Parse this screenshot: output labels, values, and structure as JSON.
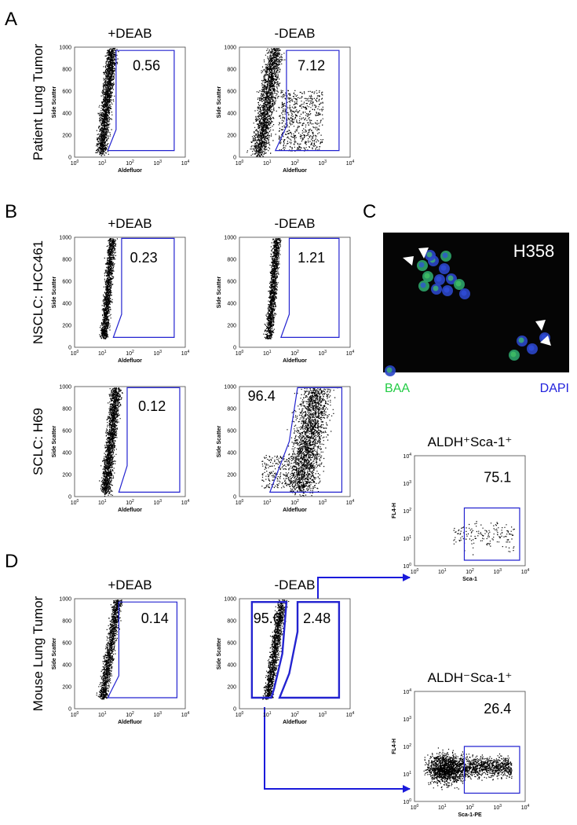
{
  "panels": {
    "A": {
      "letter": "A",
      "row_label": "Patient Lung Tumor",
      "plots": [
        {
          "title": "+DEAB",
          "gate": "0.56"
        },
        {
          "title": "-DEAB",
          "gate": "7.12"
        }
      ]
    },
    "B": {
      "letter": "B",
      "rows": [
        {
          "row_label": "NSCLC: HCC461",
          "plots": [
            {
              "title": "+DEAB",
              "gate": "0.23"
            },
            {
              "title": "-DEAB",
              "gate": "1.21"
            }
          ]
        },
        {
          "row_label": "SCLC: H69",
          "plots": [
            {
              "gate": "0.12"
            },
            {
              "gate": "96.4"
            }
          ]
        }
      ]
    },
    "C": {
      "letter": "C",
      "image_label": "H358",
      "stain_green": "BAA",
      "stain_blue": "DAPI"
    },
    "D": {
      "letter": "D",
      "row_label": "Mouse Lung Tumor",
      "plots": [
        {
          "title": "+DEAB",
          "gate": "0.14"
        },
        {
          "title": "-DEAB",
          "gates": [
            "95.6",
            "2.48"
          ]
        }
      ],
      "subplots": [
        {
          "title": "ALDH⁺Sca-1⁺",
          "gate": "75.1",
          "x_label": "Sca-1"
        },
        {
          "title": "ALDH⁻Sca-1⁺",
          "gate": "26.4",
          "x_label": "Sca-1-PE"
        }
      ]
    }
  },
  "axes": {
    "y_label": "Side Scatter",
    "x_label": "Aldefluor",
    "sub_y_label": "FL4-H",
    "y_ticks": [
      0,
      200,
      400,
      600,
      800,
      1000
    ],
    "log_base": "10",
    "exponents": [
      0,
      1,
      2,
      3,
      4
    ]
  }
}
